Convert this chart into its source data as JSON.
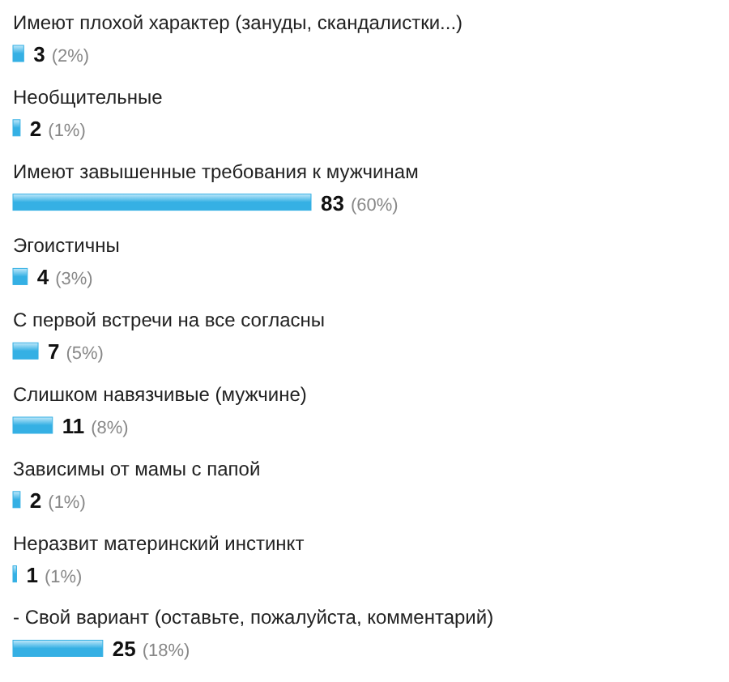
{
  "chart_data": {
    "type": "bar",
    "orientation": "horizontal",
    "categories": [
      "Имеют плохой характер (зануды, скандалистки...)",
      "Необщительные",
      "Имеют завышенные требования к мужчинам",
      "Эгоистичны",
      "С первой встречи на все согласны",
      "Слишком навязчивые (мужчине)",
      "Зависимы от мамы с папой",
      "Неразвит материнский инстинкт",
      "- Свой вариант (оставьте, пожалуйста, комментарий)"
    ],
    "values": [
      3,
      2,
      83,
      4,
      7,
      11,
      2,
      1,
      25
    ],
    "value_labels": [
      "3 (2%)",
      "2 (1%)",
      "83 (60%)",
      "4 (3%)",
      "7 (5%)",
      "11 (8%)",
      "2 (1%)",
      "1 (1%)",
      "25 (18%)"
    ],
    "color": "#35b0e4"
  }
}
